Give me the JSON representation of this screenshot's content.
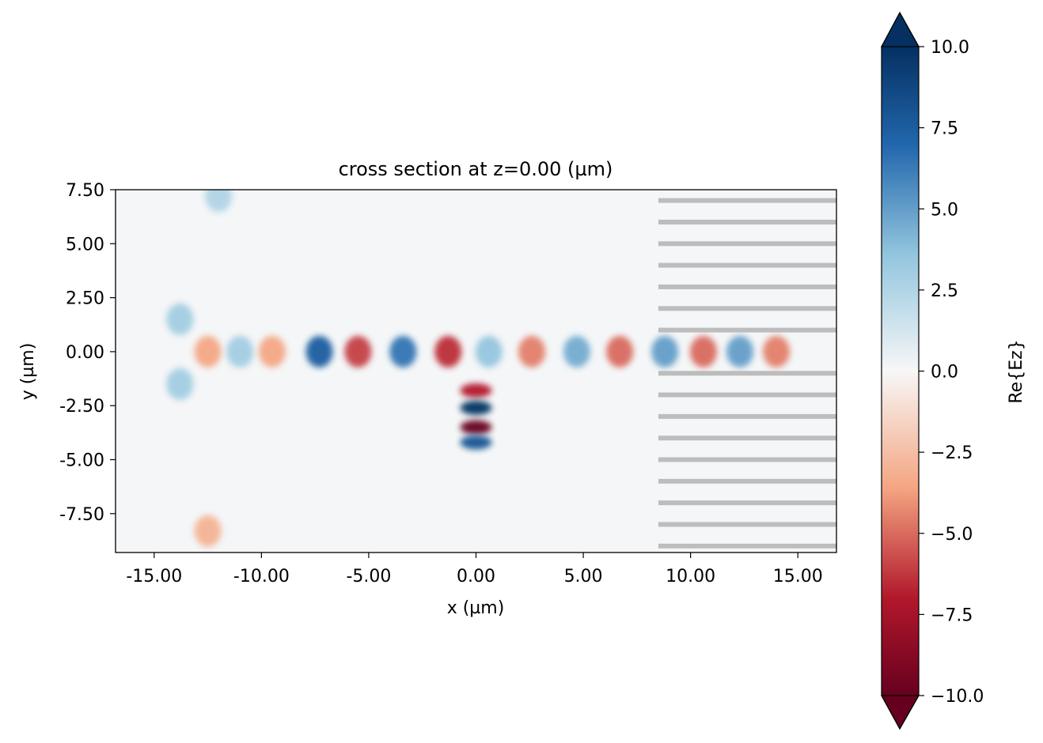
{
  "chart_data": {
    "type": "heatmap",
    "title": "cross section at z=0.00 (µm)",
    "xlabel": "x (µm)",
    "ylabel": "y (µm)",
    "xlim": [
      -16.8,
      16.8
    ],
    "ylim": [
      -9.3,
      7.5
    ],
    "x_ticks": [
      -15,
      -10,
      -5,
      0,
      5,
      10,
      15
    ],
    "x_tick_labels": [
      "-15.00",
      "-10.00",
      "-5.00",
      "0.00",
      "5.00",
      "10.00",
      "15.00"
    ],
    "y_ticks": [
      7.5,
      5,
      2.5,
      0,
      -2.5,
      -5,
      -7.5
    ],
    "y_tick_labels": [
      "7.50",
      "5.00",
      "2.50",
      "0.00",
      "-2.50",
      "-5.00",
      "-7.50"
    ],
    "grid": false,
    "colormap": "RdBu",
    "colorbar": {
      "label": "Re{Ez}",
      "range": [
        -10,
        10
      ],
      "extend": "both",
      "ticks": [
        10,
        7.5,
        5,
        2.5,
        0,
        -2.5,
        -5,
        -7.5,
        -10
      ],
      "tick_labels": [
        "10.0",
        "7.5",
        "5.0",
        "2.5",
        "0.0",
        "−2.5",
        "−5.0",
        "−7.5",
        "−10.0"
      ]
    },
    "colors": {
      "max": "#053061",
      "positive": "#2166ac",
      "mid_positive": "#92c5de",
      "zero": "#f7f7f7",
      "mid_negative": "#f4a582",
      "negative": "#b2182b",
      "min": "#67001f",
      "structure": "#bdbdbd"
    },
    "structure_bars": {
      "x_range": [
        8.5,
        16.8
      ],
      "y_values": [
        7.0,
        6.0,
        5.0,
        4.0,
        3.0,
        2.0,
        1.0,
        -1.0,
        -2.0,
        -3.0,
        -4.0,
        -5.0,
        -6.0,
        -7.0,
        -8.0,
        -9.0
      ]
    },
    "field_features": [
      {
        "x": -12.5,
        "y": 0.0,
        "value": -3.5
      },
      {
        "x": -11.0,
        "y": 0.0,
        "value": 3.0
      },
      {
        "x": -9.5,
        "y": 0.0,
        "value": -3.5
      },
      {
        "x": -7.3,
        "y": 0.0,
        "value": 7.5
      },
      {
        "x": -5.5,
        "y": 0.0,
        "value": -6.0
      },
      {
        "x": -3.4,
        "y": 0.0,
        "value": 6.5
      },
      {
        "x": -1.3,
        "y": 0.0,
        "value": -6.5
      },
      {
        "x": 0.6,
        "y": 0.0,
        "value": 3.5
      },
      {
        "x": 2.6,
        "y": 0.0,
        "value": -4.5
      },
      {
        "x": 4.7,
        "y": 0.0,
        "value": 4.5
      },
      {
        "x": 6.7,
        "y": 0.0,
        "value": -5.0
      },
      {
        "x": 8.8,
        "y": 0.0,
        "value": 5.0
      },
      {
        "x": 10.6,
        "y": 0.0,
        "value": -5.0
      },
      {
        "x": 12.3,
        "y": 0.0,
        "value": 5.0
      },
      {
        "x": 14.0,
        "y": 0.0,
        "value": -4.5
      },
      {
        "x": 0.0,
        "y": -1.8,
        "value": -7.0
      },
      {
        "x": 0.0,
        "y": -2.6,
        "value": 10.0
      },
      {
        "x": 0.0,
        "y": -3.5,
        "value": -10.0
      },
      {
        "x": 0.0,
        "y": -4.2,
        "value": 8.0
      },
      {
        "x": -13.8,
        "y": 1.5,
        "value": 3.0
      },
      {
        "x": -13.8,
        "y": -1.5,
        "value": 3.0
      },
      {
        "x": -12.5,
        "y": -8.3,
        "value": -3.0
      },
      {
        "x": -12.0,
        "y": 7.2,
        "value": 2.5
      }
    ]
  }
}
